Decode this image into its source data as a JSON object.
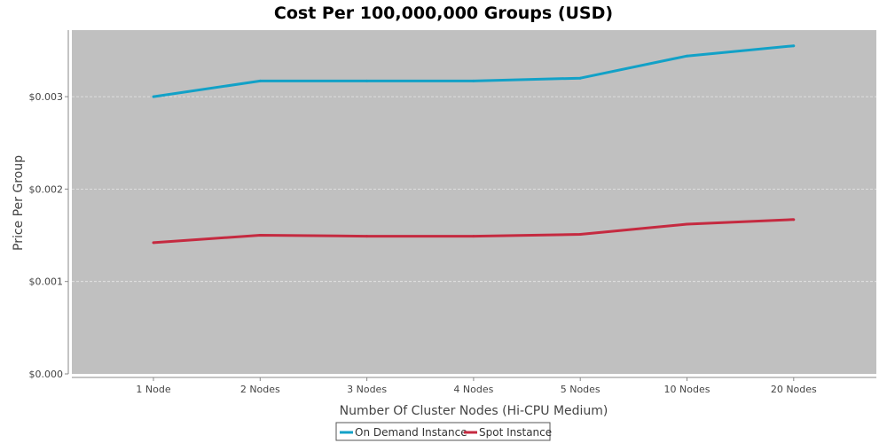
{
  "chart_data": {
    "type": "line",
    "title": "Cost Per 100,000,000 Groups (USD)",
    "xlabel": "Number Of Cluster Nodes (Hi-CPU Medium)",
    "ylabel": "Price Per Group",
    "categories": [
      "1 Node",
      "2 Nodes",
      "3 Nodes",
      "4 Nodes",
      "5 Nodes",
      "10 Nodes",
      "20 Nodes"
    ],
    "ylim": [
      0,
      0.00372
    ],
    "yticks": [
      0.0,
      0.001,
      0.002,
      0.003
    ],
    "ytick_labels": [
      "$0.000",
      "$0.001",
      "$0.002",
      "$0.003"
    ],
    "grid": true,
    "legend_position": "bottom",
    "plot_background": "#c0c0c0",
    "series": [
      {
        "name": "On Demand Instance",
        "color": "#12a1c7",
        "values": [
          0.003,
          0.00317,
          0.00317,
          0.00317,
          0.0032,
          0.00344,
          0.00355
        ]
      },
      {
        "name": "Spot Instance",
        "color": "#c52a40",
        "values": [
          0.00142,
          0.0015,
          0.00149,
          0.00149,
          0.00151,
          0.00162,
          0.00167
        ]
      }
    ]
  }
}
